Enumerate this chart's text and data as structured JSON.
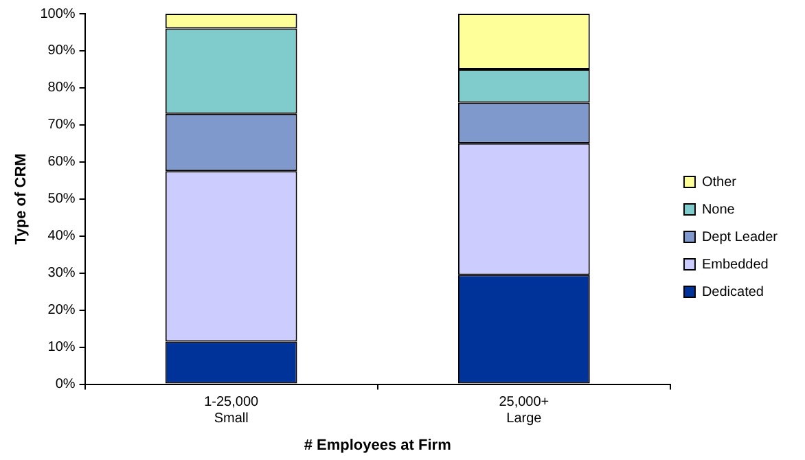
{
  "chart_data": {
    "type": "bar",
    "stacked": true,
    "xlabel": "# Employees at Firm",
    "ylabel": "Type of CRM",
    "categories": [
      "1-25,000\nSmall",
      "25,000+\nLarge"
    ],
    "series": [
      {
        "name": "Dedicated",
        "color": "#003399",
        "values": [
          11.5,
          29.5
        ]
      },
      {
        "name": "Embedded",
        "color": "#ccccff",
        "values": [
          46,
          35.5
        ]
      },
      {
        "name": "Dept Leader",
        "color": "#8099cc",
        "values": [
          15.5,
          11
        ]
      },
      {
        "name": "None",
        "color": "#80cccc",
        "values": [
          23,
          9
        ]
      },
      {
        "name": "Other",
        "color": "#ffff99",
        "values": [
          4,
          15
        ]
      }
    ],
    "ylim": [
      0,
      100
    ],
    "yticks": [
      {
        "value": 0,
        "label": "0%"
      },
      {
        "value": 10,
        "label": "10%"
      },
      {
        "value": 20,
        "label": "20%"
      },
      {
        "value": 30,
        "label": "30%"
      },
      {
        "value": 40,
        "label": "40%"
      },
      {
        "value": 50,
        "label": "50%"
      },
      {
        "value": 60,
        "label": "60%"
      },
      {
        "value": 70,
        "label": "70%"
      },
      {
        "value": 80,
        "label": "80%"
      },
      {
        "value": 90,
        "label": "90%"
      },
      {
        "value": 100,
        "label": "100%"
      }
    ],
    "grid": false,
    "legend": "right"
  }
}
